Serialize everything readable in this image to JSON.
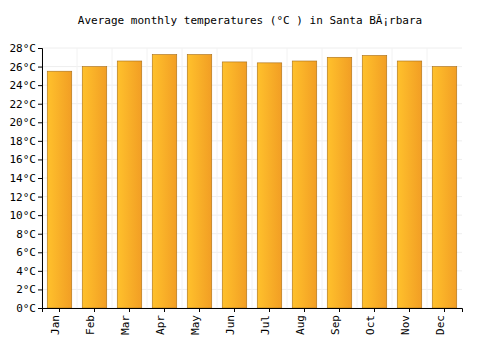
{
  "chart_data": {
    "type": "bar",
    "title": "Average monthly temperatures (°C ) in Santa BÃ¡rbara",
    "categories": [
      "Jan",
      "Feb",
      "Mar",
      "Apr",
      "May",
      "Jun",
      "Jul",
      "Aug",
      "Sep",
      "Oct",
      "Nov",
      "Dec"
    ],
    "values": [
      25.5,
      26,
      26.6,
      27.3,
      27.3,
      26.5,
      26.4,
      26.6,
      27,
      27.2,
      26.6,
      26
    ],
    "color": "#ffa726",
    "ylim": [
      0,
      28
    ],
    "yticks": [
      {
        "value": 0,
        "label": "0°C"
      },
      {
        "value": 2,
        "label": "2°C"
      },
      {
        "value": 4,
        "label": "4°C"
      },
      {
        "value": 6,
        "label": "6°C"
      },
      {
        "value": 8,
        "label": "8°C"
      },
      {
        "value": 10,
        "label": "10°C"
      },
      {
        "value": 12,
        "label": "12°C"
      },
      {
        "value": 14,
        "label": "14°C"
      },
      {
        "value": 16,
        "label": "16°C"
      },
      {
        "value": 18,
        "label": "18°C"
      },
      {
        "value": 20,
        "label": "20°C"
      },
      {
        "value": 22,
        "label": "22°C"
      },
      {
        "value": 24,
        "label": "24°C"
      },
      {
        "value": 26,
        "label": "26°C"
      },
      {
        "value": 28,
        "label": "28°C"
      }
    ],
    "grid": true
  }
}
